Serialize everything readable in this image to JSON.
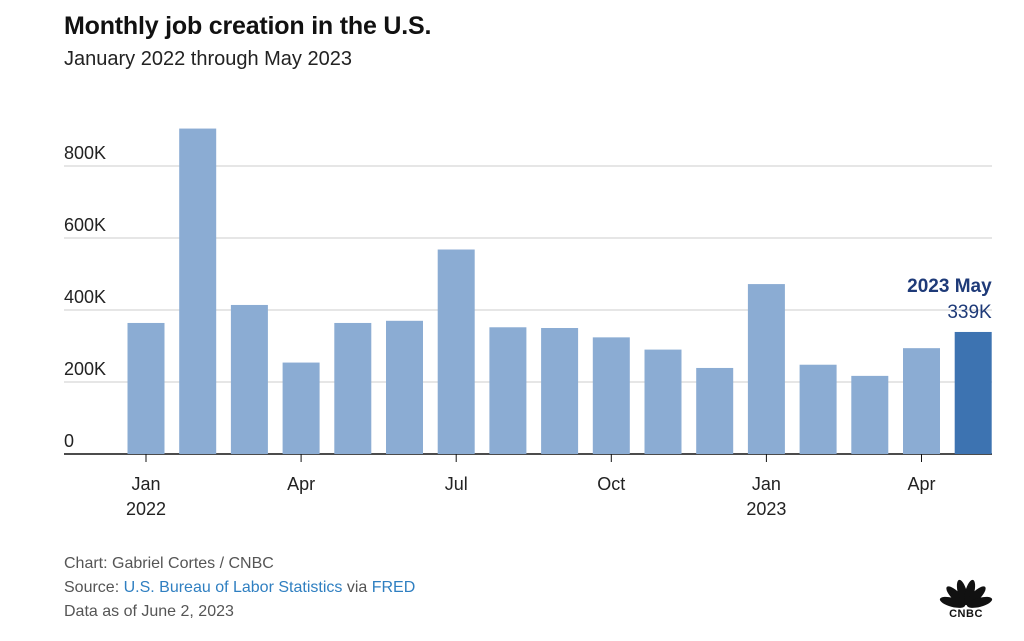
{
  "chart_data": {
    "type": "bar",
    "title": "Monthly job creation in the U.S.",
    "subtitle": "January 2022 through May 2023",
    "categories": [
      "Jan 2022",
      "Feb 2022",
      "Mar 2022",
      "Apr 2022",
      "May 2022",
      "Jun 2022",
      "Jul 2022",
      "Aug 2022",
      "Sep 2022",
      "Oct 2022",
      "Nov 2022",
      "Dec 2022",
      "Jan 2023",
      "Feb 2023",
      "Mar 2023",
      "Apr 2023",
      "May 2023"
    ],
    "values": [
      364000,
      904000,
      414000,
      254000,
      364000,
      370000,
      568000,
      352000,
      350000,
      324000,
      290000,
      239000,
      472000,
      248000,
      217000,
      294000,
      339000
    ],
    "ylim": [
      0,
      900000
    ],
    "yticks": [
      {
        "value": 0,
        "label": "0"
      },
      {
        "value": 200000,
        "label": "200K"
      },
      {
        "value": 400000,
        "label": "400K"
      },
      {
        "value": 600000,
        "label": "600K"
      },
      {
        "value": 800000,
        "label": "800K"
      }
    ],
    "xticks": [
      {
        "index": 0,
        "label": "Jan",
        "year": "2022"
      },
      {
        "index": 3,
        "label": "Apr",
        "year": ""
      },
      {
        "index": 6,
        "label": "Jul",
        "year": ""
      },
      {
        "index": 9,
        "label": "Oct",
        "year": ""
      },
      {
        "index": 12,
        "label": "Jan",
        "year": "2023"
      },
      {
        "index": 15,
        "label": "Apr",
        "year": ""
      }
    ],
    "highlight": {
      "index": 16,
      "label": "2023 May",
      "value_label": "339K"
    },
    "colors": {
      "bar": "#8bacd3",
      "highlight": "#3d73b1",
      "annotation": "#1e3a78",
      "grid": "#cccccc",
      "axis": "#111111"
    },
    "xlabel": "",
    "ylabel": "",
    "grid": true
  },
  "footer": {
    "chart_credit": "Chart: Gabriel Cortes / CNBC",
    "source_prefix": "Source: ",
    "source_link1": "U.S. Bureau of Labor Statistics",
    "source_via": " via ",
    "source_link2": "FRED",
    "data_as_of": "Data as of June 2, 2023"
  },
  "logo": {
    "text": "CNBC"
  }
}
